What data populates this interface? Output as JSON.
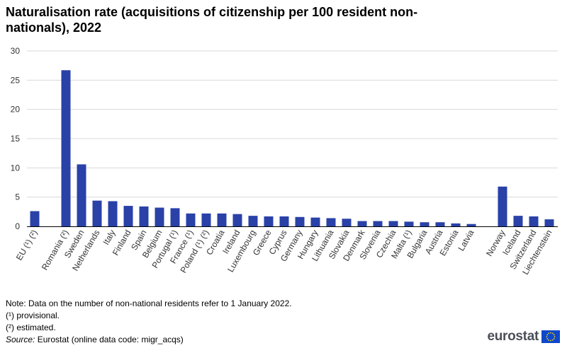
{
  "chart_data": {
    "type": "bar",
    "title": "Naturalisation rate (acquisitions of citizenship per 100 resident non-nationals), 2022",
    "ylim": [
      0,
      30
    ],
    "yticks": [
      0,
      5,
      10,
      15,
      20,
      25,
      30
    ],
    "grid": true,
    "bar_color": "#2a41a8",
    "groups": [
      {
        "categories": [
          "EU (¹) (²)"
        ],
        "values": [
          2.6
        ]
      },
      {
        "categories": [
          "Romania (²)",
          "Sweden",
          "Netherlands",
          "Italy",
          "Finland",
          "Spain",
          "Belgium",
          "Portugal (¹)",
          "France (¹)",
          "Poland (¹) (²)",
          "Croatia",
          "Ireland",
          "Luxembourg",
          "Greece",
          "Cyprus",
          "Germany",
          "Hungary",
          "Lithuania",
          "Slovakia",
          "Denmark",
          "Slovenia",
          "Czechia",
          "Malta (¹)",
          "Bulgaria",
          "Austria",
          "Estonia",
          "Latvia"
        ],
        "values": [
          26.7,
          10.6,
          4.4,
          4.3,
          3.5,
          3.4,
          3.2,
          3.1,
          2.2,
          2.2,
          2.2,
          2.1,
          1.8,
          1.7,
          1.7,
          1.6,
          1.5,
          1.4,
          1.3,
          0.9,
          0.9,
          0.9,
          0.8,
          0.7,
          0.7,
          0.5,
          0.4
        ]
      },
      {
        "categories": [
          "Norway",
          "Iceland",
          "Switzerland",
          "Liechtenstein"
        ],
        "values": [
          6.8,
          1.8,
          1.7,
          1.2
        ]
      }
    ]
  },
  "notes": {
    "note": "Note: Data on the number of non-national residents refer to 1 January 2022.",
    "fn1": "(¹) provisional.",
    "fn2": "(²) estimated.",
    "source_label": "Source:",
    "source_text": " Eurostat (online data code: migr_acqs)"
  },
  "logo": {
    "text": "eurostat"
  }
}
